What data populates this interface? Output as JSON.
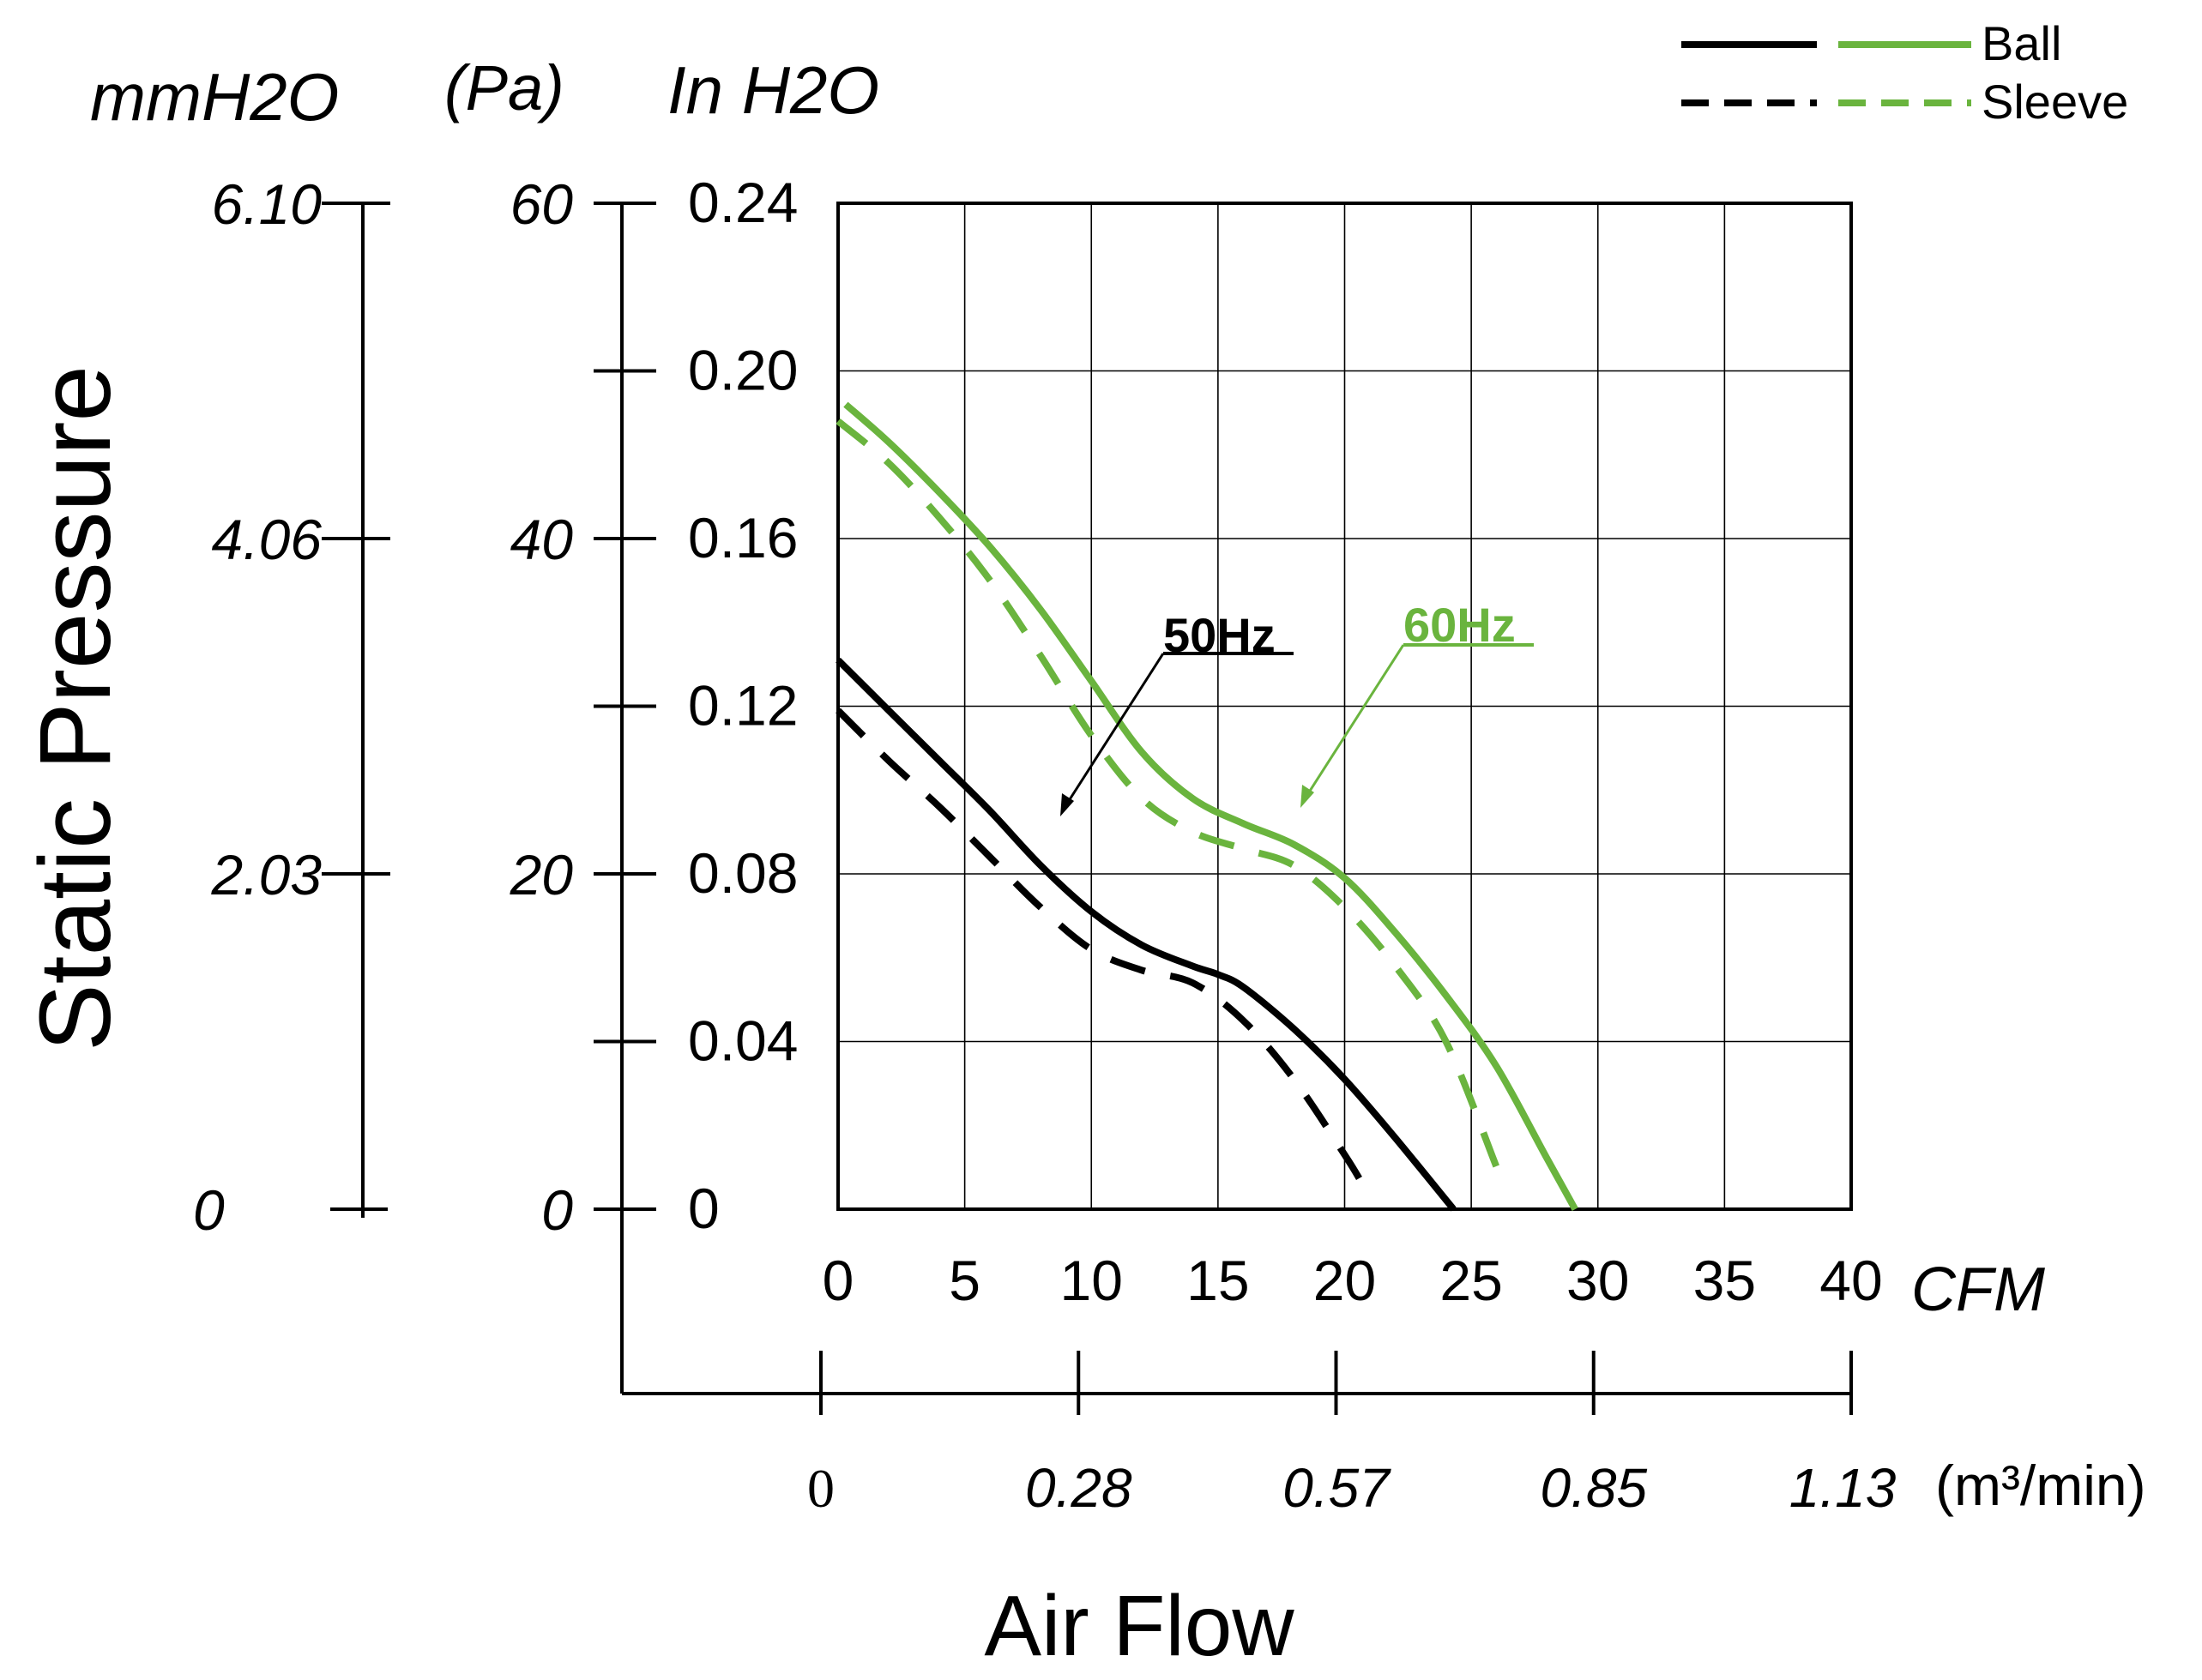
{
  "chart_data": {
    "type": "line",
    "title": "",
    "xlabel": "Air Flow",
    "ylabel": "Static Pressure",
    "x_primary": {
      "unit": "CFM",
      "range": [
        0,
        40
      ],
      "ticks": [
        "0",
        "5",
        "10",
        "15",
        "20",
        "25",
        "30",
        "35",
        "40"
      ]
    },
    "x_secondary": {
      "unit": "(m³/min)",
      "ticks": [
        "0",
        "0.28",
        "0.57",
        "0.85",
        "1.13"
      ]
    },
    "y_primary": {
      "unit": "In H2O",
      "range": [
        0,
        0.24
      ],
      "ticks": [
        "0",
        "0.04",
        "0.08",
        "0.12",
        "0.16",
        "0.20",
        "0.24"
      ]
    },
    "y_pa": {
      "unit": "(Pa)",
      "ticks": [
        "0",
        "20",
        "40",
        "60"
      ]
    },
    "y_mm": {
      "unit": "mmH2O",
      "ticks": [
        "0",
        "2.03",
        "4.06",
        "6.10"
      ]
    },
    "grid": true,
    "legend_position": "top-right",
    "legend": {
      "ball": "Ball",
      "sleeve": "Sleeve"
    },
    "annotations": [
      {
        "text": "50Hz",
        "color": "#000000"
      },
      {
        "text": "60Hz",
        "color": "#6ab43e"
      }
    ],
    "colors": {
      "hz50": "#000000",
      "hz60": "#6ab43e"
    },
    "series": [
      {
        "frequency": "50Hz",
        "bearing": "Ball",
        "line_style": "solid",
        "color": "#000000",
        "x": [
          0,
          2,
          4,
          6,
          8,
          10,
          12,
          14,
          15,
          16,
          18,
          20,
          22,
          24.3
        ],
        "y": [
          0.131,
          0.119,
          0.107,
          0.095,
          0.082,
          0.071,
          0.063,
          0.058,
          0.056,
          0.053,
          0.043,
          0.031,
          0.017,
          0.0
        ]
      },
      {
        "frequency": "50Hz",
        "bearing": "Sleeve",
        "line_style": "dashed",
        "color": "#000000",
        "x": [
          0,
          2,
          4,
          6,
          8,
          10,
          12,
          14,
          16,
          18,
          20,
          20.8
        ],
        "y": [
          0.119,
          0.107,
          0.096,
          0.084,
          0.072,
          0.062,
          0.057,
          0.054,
          0.045,
          0.031,
          0.013,
          0.005
        ]
      },
      {
        "frequency": "60Hz",
        "bearing": "Ball",
        "line_style": "solid",
        "color": "#6ab43e",
        "x": [
          0.3,
          2,
          4,
          6,
          8,
          10,
          12,
          14,
          16,
          18,
          20,
          22,
          24,
          26,
          28,
          29.1
        ],
        "y": [
          0.192,
          0.183,
          0.171,
          0.158,
          0.143,
          0.126,
          0.109,
          0.098,
          0.092,
          0.087,
          0.079,
          0.066,
          0.051,
          0.034,
          0.012,
          0.0
        ]
      },
      {
        "frequency": "60Hz",
        "bearing": "Sleeve",
        "line_style": "dashed",
        "color": "#6ab43e",
        "x": [
          0,
          2,
          4,
          6,
          8,
          10,
          12,
          14,
          16,
          18,
          20,
          22,
          24,
          26
        ],
        "y": [
          0.188,
          0.178,
          0.165,
          0.15,
          0.132,
          0.113,
          0.098,
          0.09,
          0.086,
          0.082,
          0.072,
          0.058,
          0.04,
          0.01
        ]
      }
    ]
  }
}
